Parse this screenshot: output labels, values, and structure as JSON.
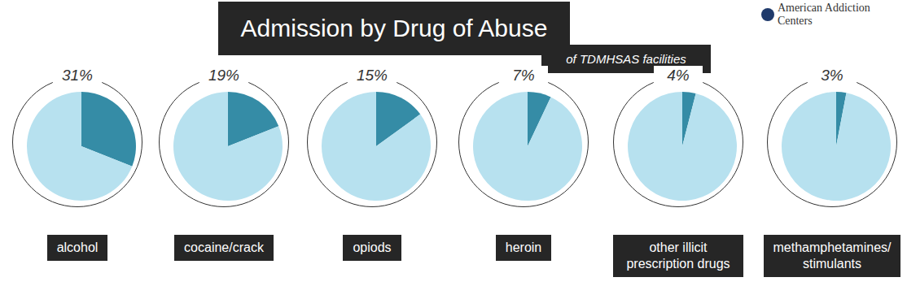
{
  "chart_data": {
    "type": "pie",
    "title": "Admission by Drug of Abuse",
    "subtitle": "of TDMHSAS facilities",
    "source": "American Addiction Centers",
    "categories": [
      "alcohol",
      "cocaine/crack",
      "opiods",
      "heroin",
      "other illicit prescription drugs",
      "methamphetamines/ stimulants"
    ],
    "values": [
      31,
      19,
      15,
      7,
      4,
      3
    ],
    "value_labels": [
      "31%",
      "19%",
      "15%",
      "7%",
      "4%",
      "3%"
    ],
    "data_labels": true,
    "color": "#358ca6"
  }
}
